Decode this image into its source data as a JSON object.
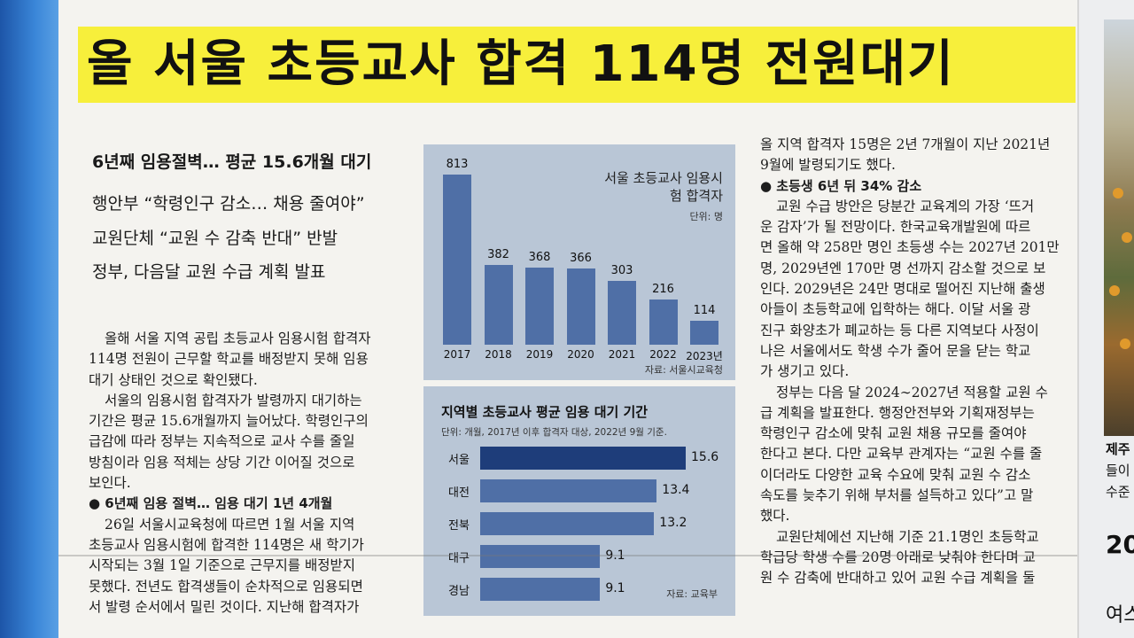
{
  "headline": "올 서울 초등교사 합격 114명 전원대기",
  "subheads": [
    "6년째 임용절벽… 평균 15.6개월 대기",
    "행안부 “학령인구 감소… 채용 줄여야”",
    "교원단체 “교원 수 감축 반대” 반발",
    "정부, 다음달 교원 수급 계획 발표"
  ],
  "left_column": [
    "올해 서울 지역 공립 초등교사 임용시험 합격자",
    "114명 전원이 근무할 학교를 배정받지 못해 임용",
    "대기 상태인 것으로 확인됐다.",
    "서울의 임용시험 합격자가 발령까지 대기하는",
    "기간은 평균 15.6개월까지 늘어났다. 학령인구의",
    "급감에 따라 정부는 지속적으로 교사 수를 줄일",
    "방침이라 임용 적체는 상당 기간 이어질 것으로",
    "보인다.",
    "● 6년째 임용 절벽… 임용 대기 1년 4개월",
    "26일 서울시교육청에 따르면 1월 서울 지역",
    "초등교사 임용시험에 합격한 114명은 새 학기가",
    "시작되는 3월 1일 기준으로 근무지를 배정받지",
    "못했다. 전년도 합격생들이 순차적으로 임용되면",
    "서 발령 순서에서 밀린 것이다. 지난해 합격자가"
  ],
  "right_column": [
    "올 지역 합격자 15명은 2년 7개월이 지난 2021년",
    "9월에 발령되기도 했다.",
    "● 초등생 6년 뒤 34% 감소",
    "교원 수급 방안은 당분간 교육계의 가장 ‘뜨거",
    "운 감자’가 될 전망이다. 한국교육개발원에 따르",
    "면 올해 약 258만 명인 초등생 수는 2027년 201만",
    "명, 2029년엔 170만 명 선까지 감소할 것으로 보",
    "인다. 2029년은 24만 명대로 떨어진 지난해 출생",
    "아들이 초등학교에 입학하는 해다. 이달 서울 광",
    "진구 화양초가 폐교하는 등 다른 지역보다 사정이",
    "나은 서울에서도 학생 수가 줄어 문을 닫는 학교",
    "가 생기고 있다.",
    "정부는 다음 달 2024∼2027년 적용할 교원 수",
    "급 계획을 발표한다. 행정안전부와 기획재정부는",
    "학령인구 감소에 맞춰 교원 채용 규모를 줄여야",
    "한다고 본다. 다만 교육부 관계자는 “교원 수를 줄",
    "이더라도 다양한 교육 수요에 맞춰 교원 수 감소",
    "속도를 늦추기 위해 부처를 설득하고 있다”고 말",
    "했다.",
    "교원단체에선 지난해 기준 21.1명인 초등학교",
    "학급당 학생 수를 20명 아래로 낮춰야 한다며 교",
    "원 수 감축에 반대하고 있어 교원 수급 계획을 둘"
  ],
  "side_strip": [
    "제주",
    "들이",
    "수준",
    "20",
    "여스"
  ],
  "colors": {
    "headline_highlight": "#f7ef3b",
    "chart_bg": "#b9c6d6",
    "bar": "#4f6fa6",
    "bar_highlight": "#1e3d7a",
    "frame_blue": "#2f6fc0"
  },
  "chart_data": [
    {
      "type": "bar",
      "title": "서울 초등교사 임용시험 합격자",
      "unit": "단위: 명",
      "source": "자료: 서울시교육청",
      "categories": [
        "2017",
        "2018",
        "2019",
        "2020",
        "2021",
        "2022",
        "2023년"
      ],
      "values": [
        813,
        382,
        368,
        366,
        303,
        216,
        114
      ],
      "ylim": [
        0,
        813
      ]
    },
    {
      "type": "bar",
      "orientation": "horizontal",
      "title": "지역별 초등교사 평균 임용 대기 기간",
      "note": "단위: 개월, 2017년 이후 합격자 대상, 2022년 9월 기준.",
      "source": "자료: 교육부",
      "categories": [
        "서울",
        "대전",
        "전북",
        "대구",
        "경남"
      ],
      "values": [
        15.6,
        13.4,
        13.2,
        9.1,
        9.1
      ],
      "xlim": [
        0,
        15.6
      ]
    }
  ]
}
